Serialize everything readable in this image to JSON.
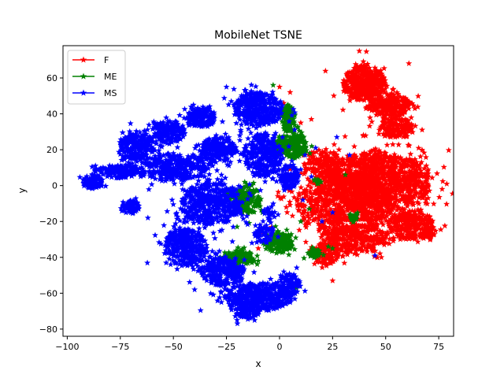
{
  "chart_data": {
    "type": "scatter",
    "title": "MobileNet TSNE",
    "xlabel": "x",
    "ylabel": "y",
    "xlim": [
      -102,
      82
    ],
    "ylim": [
      -84,
      78
    ],
    "xticks": [
      -100,
      -75,
      -50,
      -25,
      0,
      25,
      50,
      75
    ],
    "yticks": [
      -80,
      -60,
      -40,
      -20,
      0,
      20,
      40,
      60
    ],
    "xtick_labels": [
      "−100",
      "−75",
      "−50",
      "−25",
      "0",
      "25",
      "50",
      "75"
    ],
    "ytick_labels": [
      "−80",
      "−60",
      "−40",
      "−20",
      "0",
      "20",
      "40",
      "60"
    ],
    "grid": false,
    "marker": "star",
    "legend": {
      "position": "upper-left"
    },
    "series": [
      {
        "name": "F",
        "color": "#ff0000",
        "clusters": [
          {
            "cx": 40,
            "cy": 57,
            "rx": 10,
            "ry": 10,
            "n": 420
          },
          {
            "cx": 52,
            "cy": 45,
            "rx": 10,
            "ry": 6,
            "n": 260
          },
          {
            "cx": 55,
            "cy": 32,
            "rx": 8,
            "ry": 6,
            "n": 160
          },
          {
            "cx": 47,
            "cy": 2,
            "rx": 24,
            "ry": 17,
            "n": 1100
          },
          {
            "cx": 30,
            "cy": -10,
            "rx": 22,
            "ry": 18,
            "n": 800
          },
          {
            "cx": 62,
            "cy": -22,
            "rx": 11,
            "ry": 8,
            "n": 260
          },
          {
            "cx": 37,
            "cy": -30,
            "rx": 14,
            "ry": 8,
            "n": 260
          },
          {
            "cx": 22,
            "cy": -38,
            "rx": 6,
            "ry": 6,
            "n": 120
          },
          {
            "cx": 70,
            "cy": -27,
            "rx": 3,
            "ry": 4,
            "n": 40
          },
          {
            "cx": 20,
            "cy": 12,
            "rx": 9,
            "ry": 8,
            "n": 150
          }
        ],
        "sparse": [
          [
            0,
            55
          ],
          [
            5,
            52
          ],
          [
            15,
            37
          ],
          [
            10,
            35
          ],
          [
            -10,
            -35
          ],
          [
            3,
            40
          ],
          [
            28,
            20
          ],
          [
            35,
            16
          ],
          [
            70,
            -7
          ],
          [
            25,
            -53
          ],
          [
            48,
            -40
          ],
          [
            2,
            46
          ]
        ]
      },
      {
        "name": "ME",
        "color": "#008000",
        "clusters": [
          {
            "cx": 4,
            "cy": 37,
            "rx": 3,
            "ry": 8,
            "n": 140
          },
          {
            "cx": 7,
            "cy": 22,
            "rx": 6,
            "ry": 7,
            "n": 200
          },
          {
            "cx": -1,
            "cy": 22,
            "rx": 3,
            "ry": 4,
            "n": 50
          },
          {
            "cx": -15,
            "cy": -8,
            "rx": 6,
            "ry": 8,
            "n": 170
          },
          {
            "cx": -22,
            "cy": -5,
            "rx": 2,
            "ry": 3,
            "n": 30
          },
          {
            "cx": -19,
            "cy": -40,
            "rx": 7,
            "ry": 4,
            "n": 130
          },
          {
            "cx": 0,
            "cy": -32,
            "rx": 6,
            "ry": 6,
            "n": 150
          },
          {
            "cx": 17,
            "cy": -38,
            "rx": 3,
            "ry": 3,
            "n": 40
          },
          {
            "cx": 35,
            "cy": -18,
            "rx": 2,
            "ry": 3,
            "n": 20
          },
          {
            "cx": 18,
            "cy": 2,
            "rx": 2,
            "ry": 2,
            "n": 15
          }
        ],
        "sparse": [
          [
            -3,
            56
          ],
          [
            -13,
            -43
          ],
          [
            -10,
            -42
          ],
          [
            8,
            -57
          ],
          [
            -20,
            -23
          ],
          [
            10,
            -20
          ],
          [
            31,
            6
          ],
          [
            -28,
            -40
          ],
          [
            23,
            -34
          ],
          [
            25,
            -35
          ],
          [
            14,
            -13
          ]
        ]
      },
      {
        "name": "MS",
        "color": "#0000ff",
        "clusters": [
          {
            "cx": -10,
            "cy": 43,
            "rx": 11,
            "ry": 10,
            "n": 380
          },
          {
            "cx": -8,
            "cy": 17,
            "rx": 9,
            "ry": 12,
            "n": 320
          },
          {
            "cx": 4,
            "cy": 5,
            "rx": 5,
            "ry": 7,
            "n": 110
          },
          {
            "cx": -37,
            "cy": 38,
            "rx": 7,
            "ry": 6,
            "n": 160
          },
          {
            "cx": -52,
            "cy": 30,
            "rx": 8,
            "ry": 6,
            "n": 170
          },
          {
            "cx": -67,
            "cy": 22,
            "rx": 8,
            "ry": 8,
            "n": 220
          },
          {
            "cx": -29,
            "cy": 20,
            "rx": 8,
            "ry": 7,
            "n": 200
          },
          {
            "cx": -50,
            "cy": 10,
            "rx": 16,
            "ry": 8,
            "n": 340
          },
          {
            "cx": -75,
            "cy": 8,
            "rx": 10,
            "ry": 4,
            "n": 160
          },
          {
            "cx": -88,
            "cy": 2,
            "rx": 5,
            "ry": 4,
            "n": 90
          },
          {
            "cx": -32,
            "cy": -10,
            "rx": 14,
            "ry": 12,
            "n": 480
          },
          {
            "cx": -70,
            "cy": -12,
            "rx": 4,
            "ry": 4,
            "n": 70
          },
          {
            "cx": -44,
            "cy": -34,
            "rx": 10,
            "ry": 11,
            "n": 340
          },
          {
            "cx": -27,
            "cy": -48,
            "rx": 10,
            "ry": 8,
            "n": 260
          },
          {
            "cx": -10,
            "cy": -62,
            "rx": 16,
            "ry": 8,
            "n": 440
          },
          {
            "cx": -15,
            "cy": -70,
            "rx": 6,
            "ry": 4,
            "n": 80
          },
          {
            "cx": 5,
            "cy": -55,
            "rx": 5,
            "ry": 6,
            "n": 90
          },
          {
            "cx": -7,
            "cy": -27,
            "rx": 5,
            "ry": 5,
            "n": 60
          },
          {
            "cx": -5,
            "cy": -16,
            "rx": 3,
            "ry": 4,
            "n": 30
          }
        ],
        "sparse": [
          [
            -25,
            55
          ],
          [
            10,
            9
          ],
          [
            12,
            17
          ],
          [
            17,
            21
          ],
          [
            27,
            27
          ],
          [
            33,
            17
          ],
          [
            20,
            -20
          ],
          [
            25,
            -15
          ],
          [
            45,
            -39
          ],
          [
            -85,
            9
          ],
          [
            -62,
            -18
          ],
          [
            -40,
            -58
          ],
          [
            -20,
            -75
          ],
          [
            2,
            -48
          ],
          [
            11,
            -8
          ],
          [
            15,
            5
          ],
          [
            -13,
            -32
          ]
        ]
      }
    ]
  }
}
